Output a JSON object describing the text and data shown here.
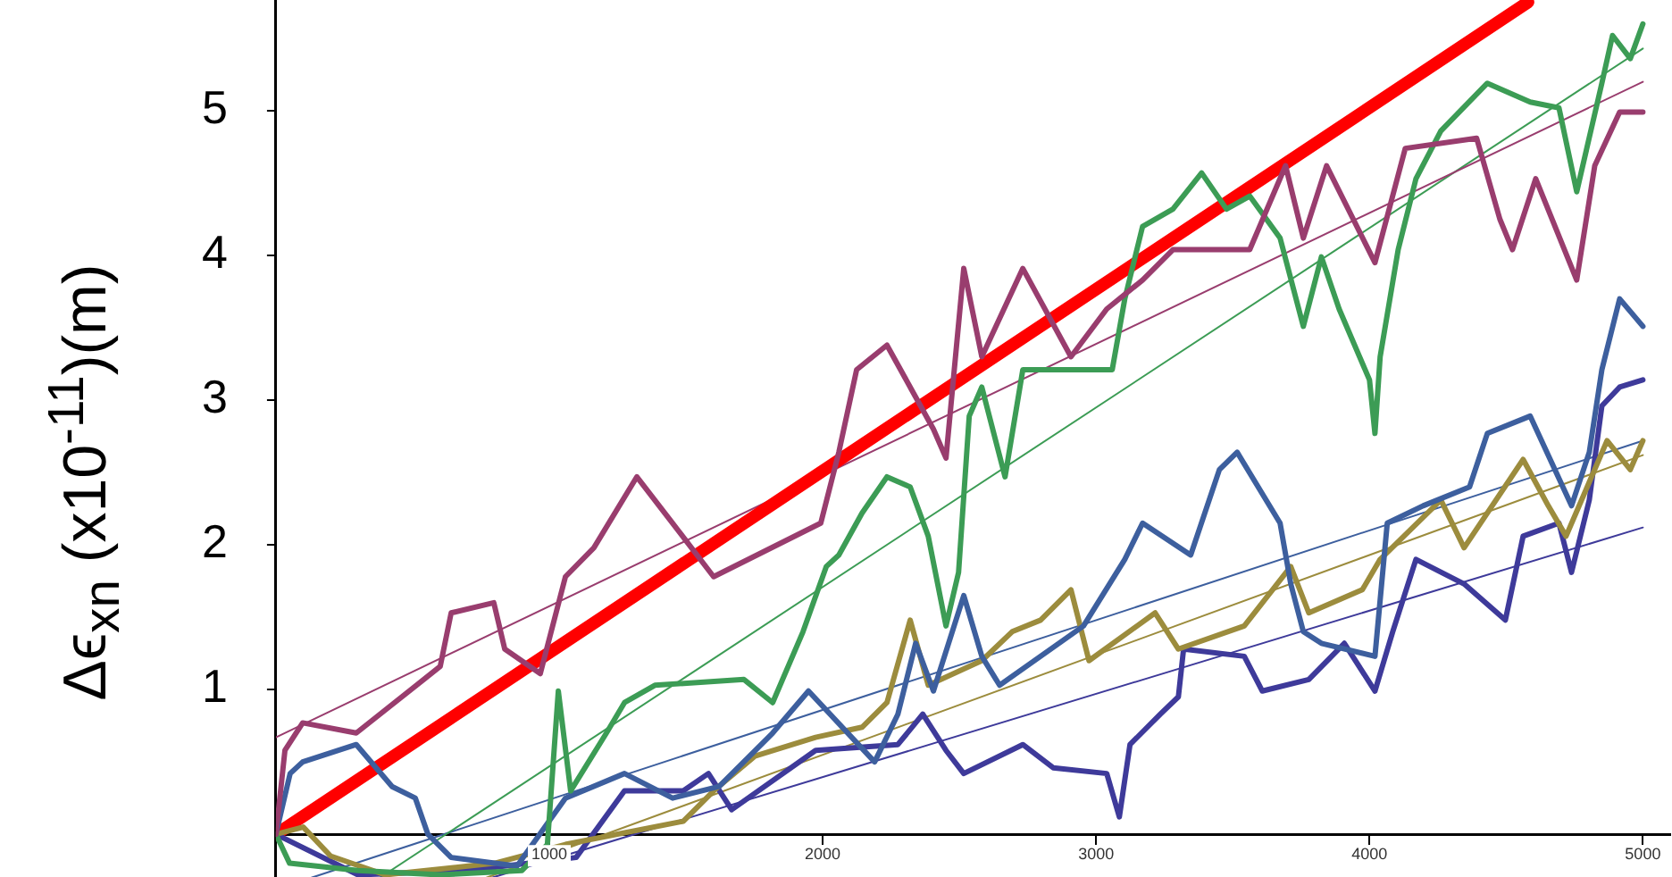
{
  "chart_data": {
    "type": "line",
    "ylabel": "Δϵ$_{xn}$ (x10$^{-11}$)(m)",
    "xlim": [
      0,
      5100
    ],
    "ylim": [
      -0.3,
      5.77
    ],
    "xticks": [
      1000,
      2000,
      3000,
      4000,
      5000
    ],
    "yticks": [
      1,
      2,
      3,
      4,
      5
    ],
    "grid": false,
    "marker": "none",
    "line_style": "solid",
    "series": [
      {
        "type": "line",
        "color": "#993d6e",
        "x": [
          0,
          33,
          98,
          294,
          601,
          641,
          797,
          837,
          967,
          1059,
          1163,
          1320,
          1451,
          1601,
          1993,
          2059,
          2124,
          2235,
          2405,
          2451,
          2516,
          2582,
          2732,
          2908,
          3039,
          3170,
          3281,
          3562,
          3693,
          3758,
          3843,
          4020,
          4131,
          4392,
          4477,
          4523,
          4608,
          4758,
          4824,
          4915,
          5000
        ],
        "values": [
          0,
          0.58,
          0.77,
          0.7,
          1.16,
          1.53,
          1.6,
          1.28,
          1.11,
          1.78,
          1.98,
          2.47,
          2.15,
          1.78,
          2.15,
          2.64,
          3.21,
          3.38,
          2.8,
          2.6,
          3.91,
          3.3,
          3.91,
          3.3,
          3.63,
          3.83,
          4.04,
          4.04,
          4.62,
          4.12,
          4.62,
          3.95,
          4.74,
          4.81,
          4.25,
          4.04,
          4.53,
          3.83,
          4.62,
          4.99,
          4.99
        ]
      },
      {
        "type": "line",
        "color": "#3c9c55",
        "x": [
          0,
          50,
          300,
          600,
          900,
          993,
          1033,
          1078,
          1209,
          1275,
          1386,
          1712,
          1817,
          1928,
          2013,
          2059,
          2144,
          2235,
          2320,
          2386,
          2451,
          2497,
          2536,
          2582,
          2667,
          2732,
          2954,
          3059,
          3105,
          3170,
          3281,
          3386,
          3477,
          3562,
          3673,
          3758,
          3824,
          3889,
          4000,
          4020,
          4039,
          4105,
          4170,
          4261,
          4431,
          4588,
          4693,
          4758,
          4850,
          4889,
          4954,
          5000
        ],
        "values": [
          0,
          -0.2,
          -0.25,
          -0.28,
          -0.25,
          -0.07,
          0.99,
          0.3,
          0.7,
          0.91,
          1.03,
          1.07,
          0.91,
          1.4,
          1.85,
          1.93,
          2.22,
          2.47,
          2.4,
          2.06,
          1.44,
          1.81,
          2.89,
          3.09,
          2.47,
          3.21,
          3.21,
          3.21,
          3.7,
          4.2,
          4.32,
          4.57,
          4.32,
          4.41,
          4.12,
          3.51,
          3.99,
          3.63,
          3.14,
          2.77,
          3.3,
          4.04,
          4.53,
          4.86,
          5.19,
          5.06,
          5.02,
          4.44,
          5.19,
          5.52,
          5.36,
          5.6
        ]
      },
      {
        "type": "line",
        "color": "#3d5f9e",
        "x": [
          0,
          52,
          98,
          294,
          425,
          510,
          556,
          641,
          882,
          1059,
          1275,
          1451,
          1621,
          1817,
          1948,
          2190,
          2275,
          2340,
          2405,
          2516,
          2582,
          2647,
          2954,
          3105,
          3170,
          3346,
          3451,
          3516,
          3673,
          3712,
          3758,
          3824,
          4020,
          4065,
          4196,
          4366,
          4431,
          4588,
          4739,
          4804,
          4850,
          4915,
          5000
        ],
        "values": [
          0,
          0.42,
          0.5,
          0.62,
          0.33,
          0.25,
          0,
          -0.16,
          -0.22,
          0.25,
          0.42,
          0.25,
          0.33,
          0.7,
          0.99,
          0.5,
          0.83,
          1.32,
          0.99,
          1.65,
          1.23,
          1.03,
          1.44,
          1.9,
          2.15,
          1.93,
          2.52,
          2.64,
          2.15,
          1.73,
          1.4,
          1.32,
          1.23,
          2.15,
          2.27,
          2.4,
          2.77,
          2.89,
          2.27,
          2.64,
          3.21,
          3.7,
          3.51
        ]
      },
      {
        "type": "line",
        "color": "#9c8c3d",
        "x": [
          0,
          100,
          200,
          400,
          800,
          1059,
          1490,
          1601,
          1752,
          1974,
          2144,
          2235,
          2320,
          2386,
          2582,
          2693,
          2797,
          2908,
          2974,
          3216,
          3301,
          3542,
          3712,
          3778,
          3974,
          4039,
          4261,
          4346,
          4562,
          4654,
          4719,
          4869,
          4954,
          5000
        ],
        "values": [
          0,
          0.05,
          -0.15,
          -0.28,
          -0.2,
          -0.07,
          0.09,
          0.3,
          0.54,
          0.67,
          0.74,
          0.91,
          1.48,
          1.03,
          1.2,
          1.4,
          1.48,
          1.69,
          1.2,
          1.53,
          1.28,
          1.44,
          1.85,
          1.53,
          1.69,
          1.9,
          2.31,
          1.98,
          2.59,
          2.27,
          2.06,
          2.72,
          2.52,
          2.72
        ]
      },
      {
        "type": "line",
        "color": "#3e3a9a",
        "x": [
          0,
          300,
          700,
          1098,
          1275,
          1490,
          1582,
          1667,
          1974,
          2275,
          2366,
          2451,
          2516,
          2732,
          2843,
          3039,
          3085,
          3124,
          3235,
          3301,
          3320,
          3542,
          3608,
          3778,
          3908,
          4020,
          4085,
          4170,
          4346,
          4497,
          4562,
          4693,
          4739,
          4804,
          4850,
          4915,
          5000
        ],
        "values": [
          0,
          -0.28,
          -0.25,
          -0.16,
          0.3,
          0.3,
          0.42,
          0.17,
          0.58,
          0.62,
          0.83,
          0.58,
          0.42,
          0.62,
          0.46,
          0.42,
          0.12,
          0.62,
          0.83,
          0.95,
          1.28,
          1.23,
          0.99,
          1.07,
          1.32,
          0.99,
          1.4,
          1.9,
          1.73,
          1.48,
          2.06,
          2.15,
          1.81,
          2.31,
          2.96,
          3.09,
          3.14
        ]
      },
      {
        "type": "line",
        "color": "#ff0000",
        "x": [
          0,
          4580
        ],
        "values": [
          0,
          5.75
        ]
      },
      {
        "type": "line",
        "color": "#993d6e",
        "x": [
          0,
          5000
        ],
        "values": [
          0.67,
          5.2
        ]
      },
      {
        "type": "line",
        "color": "#3c9c55",
        "x": [
          380,
          5000
        ],
        "values": [
          -0.3,
          5.43
        ]
      },
      {
        "type": "line",
        "color": "#3d5f9e",
        "x": [
          130,
          5000
        ],
        "values": [
          -0.3,
          2.72
        ]
      },
      {
        "type": "line",
        "color": "#9c8c3d",
        "x": [
          770,
          5000
        ],
        "values": [
          -0.3,
          2.62
        ]
      },
      {
        "type": "line",
        "color": "#3e3a9a",
        "x": [
          790,
          5000
        ],
        "values": [
          -0.3,
          2.12
        ]
      }
    ]
  }
}
